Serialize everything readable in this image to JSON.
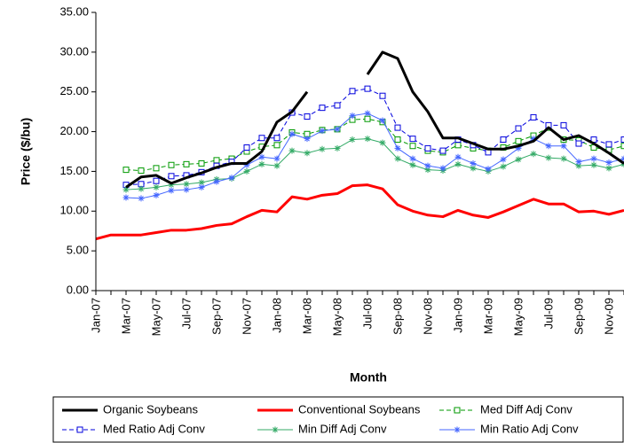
{
  "chart_data": {
    "type": "line",
    "y_label": "Price ($/bu)",
    "x_label": "Month",
    "categories": [
      "Jan-07",
      null,
      "Mar-07",
      null,
      "May-07",
      null,
      "Jul-07",
      null,
      "Sep-07",
      null,
      "Nov-07",
      null,
      "Jan-08",
      null,
      "Mar-08",
      null,
      "May-08",
      null,
      "Jul-08",
      null,
      "Sep-08",
      null,
      "Nov-08",
      null,
      "Jan-09",
      null,
      "Mar-09",
      null,
      "May-09",
      null,
      "Jul-09",
      null,
      "Sep-09",
      null,
      "Nov-09",
      null
    ],
    "ylim": [
      0,
      35
    ],
    "yticks": [
      {
        "value": 0,
        "label": "0.00"
      },
      {
        "value": 5,
        "label": "5.00"
      },
      {
        "value": 10,
        "label": "10.00"
      },
      {
        "value": 15,
        "label": "15.00"
      },
      {
        "value": 20,
        "label": "20.00"
      },
      {
        "value": 25,
        "label": "25.00"
      },
      {
        "value": 30,
        "label": "30.00"
      },
      {
        "value": 35,
        "label": "35.00"
      }
    ],
    "legend": "bottom",
    "series": [
      {
        "name": "Organic Soybeans",
        "color": "#000000",
        "width": 3,
        "dashed": false,
        "marker": "none",
        "values": [
          null,
          null,
          13.0,
          14.3,
          14.5,
          13.5,
          14.2,
          14.8,
          15.5,
          16.0,
          16.0,
          17.5,
          21.2,
          22.5,
          25.0,
          null,
          null,
          null,
          27.2,
          30.0,
          29.2,
          25.0,
          22.5,
          19.2,
          19.2,
          18.5,
          17.8,
          17.8,
          18.2,
          18.8,
          20.5,
          19.0,
          19.5,
          18.5,
          17.3,
          16.0
        ]
      },
      {
        "name": "Conventional Soybeans",
        "color": "#ff0000",
        "width": 3,
        "dashed": false,
        "marker": "none",
        "values": [
          6.5,
          7.0,
          7.0,
          7.0,
          7.3,
          7.6,
          7.6,
          7.8,
          8.2,
          8.4,
          9.3,
          10.1,
          9.9,
          11.8,
          11.5,
          12.0,
          12.2,
          13.2,
          13.3,
          12.8,
          10.8,
          10.0,
          9.5,
          9.3,
          10.1,
          9.5,
          9.2,
          9.9,
          10.7,
          11.5,
          10.9,
          10.9,
          9.9,
          10.0,
          9.6,
          10.1
        ]
      },
      {
        "name": "Med Diff Adj Conv",
        "color": "#009900",
        "width": 1,
        "dashed": true,
        "marker": "square",
        "values": [
          null,
          null,
          15.2,
          15.1,
          15.4,
          15.8,
          15.9,
          16.0,
          16.4,
          16.6,
          17.5,
          18.1,
          18.3,
          19.9,
          19.7,
          20.2,
          20.3,
          21.5,
          21.6,
          21.2,
          19.0,
          18.2,
          17.6,
          17.4,
          18.3,
          17.9,
          17.6,
          18.0,
          18.8,
          19.5,
          20.5,
          19.0,
          18.9,
          18.0,
          17.7,
          18.2
        ]
      },
      {
        "name": "Med Ratio Adj Conv",
        "color": "#0000dd",
        "width": 1,
        "dashed": true,
        "marker": "square",
        "values": [
          null,
          null,
          13.3,
          13.4,
          13.8,
          14.4,
          14.5,
          14.9,
          15.7,
          16.2,
          18.0,
          19.2,
          19.2,
          22.4,
          21.9,
          23.0,
          23.3,
          25.1,
          25.4,
          24.5,
          20.5,
          19.1,
          17.9,
          17.6,
          19.0,
          18.3,
          17.4,
          19.0,
          20.4,
          21.8,
          20.8,
          20.8,
          18.5,
          19.0,
          18.4,
          19.0
        ]
      },
      {
        "name": "Min Diff Adj Conv",
        "color": "#33aa66",
        "width": 1,
        "dashed": false,
        "marker": "star",
        "values": [
          null,
          null,
          12.7,
          12.8,
          13.0,
          13.3,
          13.4,
          13.6,
          14.0,
          14.1,
          15.0,
          15.9,
          15.7,
          17.6,
          17.3,
          17.8,
          17.9,
          19.0,
          19.1,
          18.6,
          16.6,
          15.8,
          15.2,
          15.1,
          15.9,
          15.4,
          15.0,
          15.6,
          16.5,
          17.2,
          16.7,
          16.6,
          15.7,
          15.8,
          15.4,
          15.9
        ]
      },
      {
        "name": "Min Ratio Adj Conv",
        "color": "#4466ff",
        "width": 1,
        "dashed": false,
        "marker": "star",
        "values": [
          null,
          null,
          11.7,
          11.6,
          12.0,
          12.6,
          12.7,
          13.0,
          13.7,
          14.2,
          15.8,
          16.8,
          16.6,
          19.7,
          19.1,
          20.1,
          20.3,
          22.0,
          22.3,
          21.4,
          17.9,
          16.6,
          15.7,
          15.4,
          16.8,
          16.0,
          15.3,
          16.5,
          17.9,
          19.1,
          18.2,
          18.2,
          16.2,
          16.6,
          16.1,
          16.6
        ]
      }
    ]
  }
}
